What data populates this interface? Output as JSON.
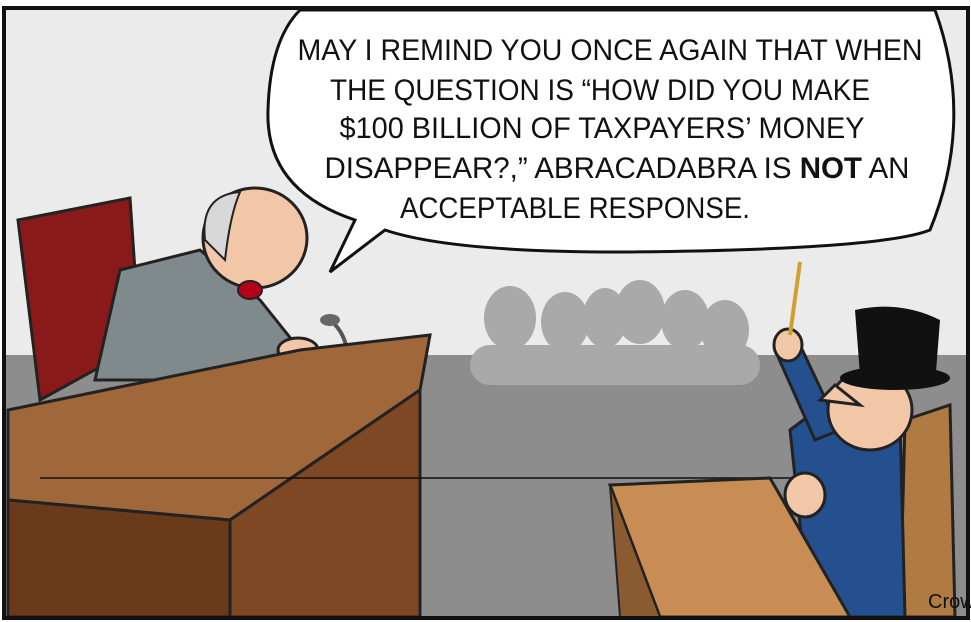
{
  "speech_bubble": {
    "lines": [
      "MAY I REMIND YOU ONCE AGAIN THAT WHEN",
      "THE QUESTION IS “HOW DID YOU MAKE",
      "$100 BILLION OF TAXPAYERS’ MONEY",
      [
        "DISAPPEAR?,” ABRACADABRA IS",
        "NOT",
        "AN"
      ],
      "ACCEPTABLE RESPONSE."
    ]
  },
  "signature": "Crow"
}
